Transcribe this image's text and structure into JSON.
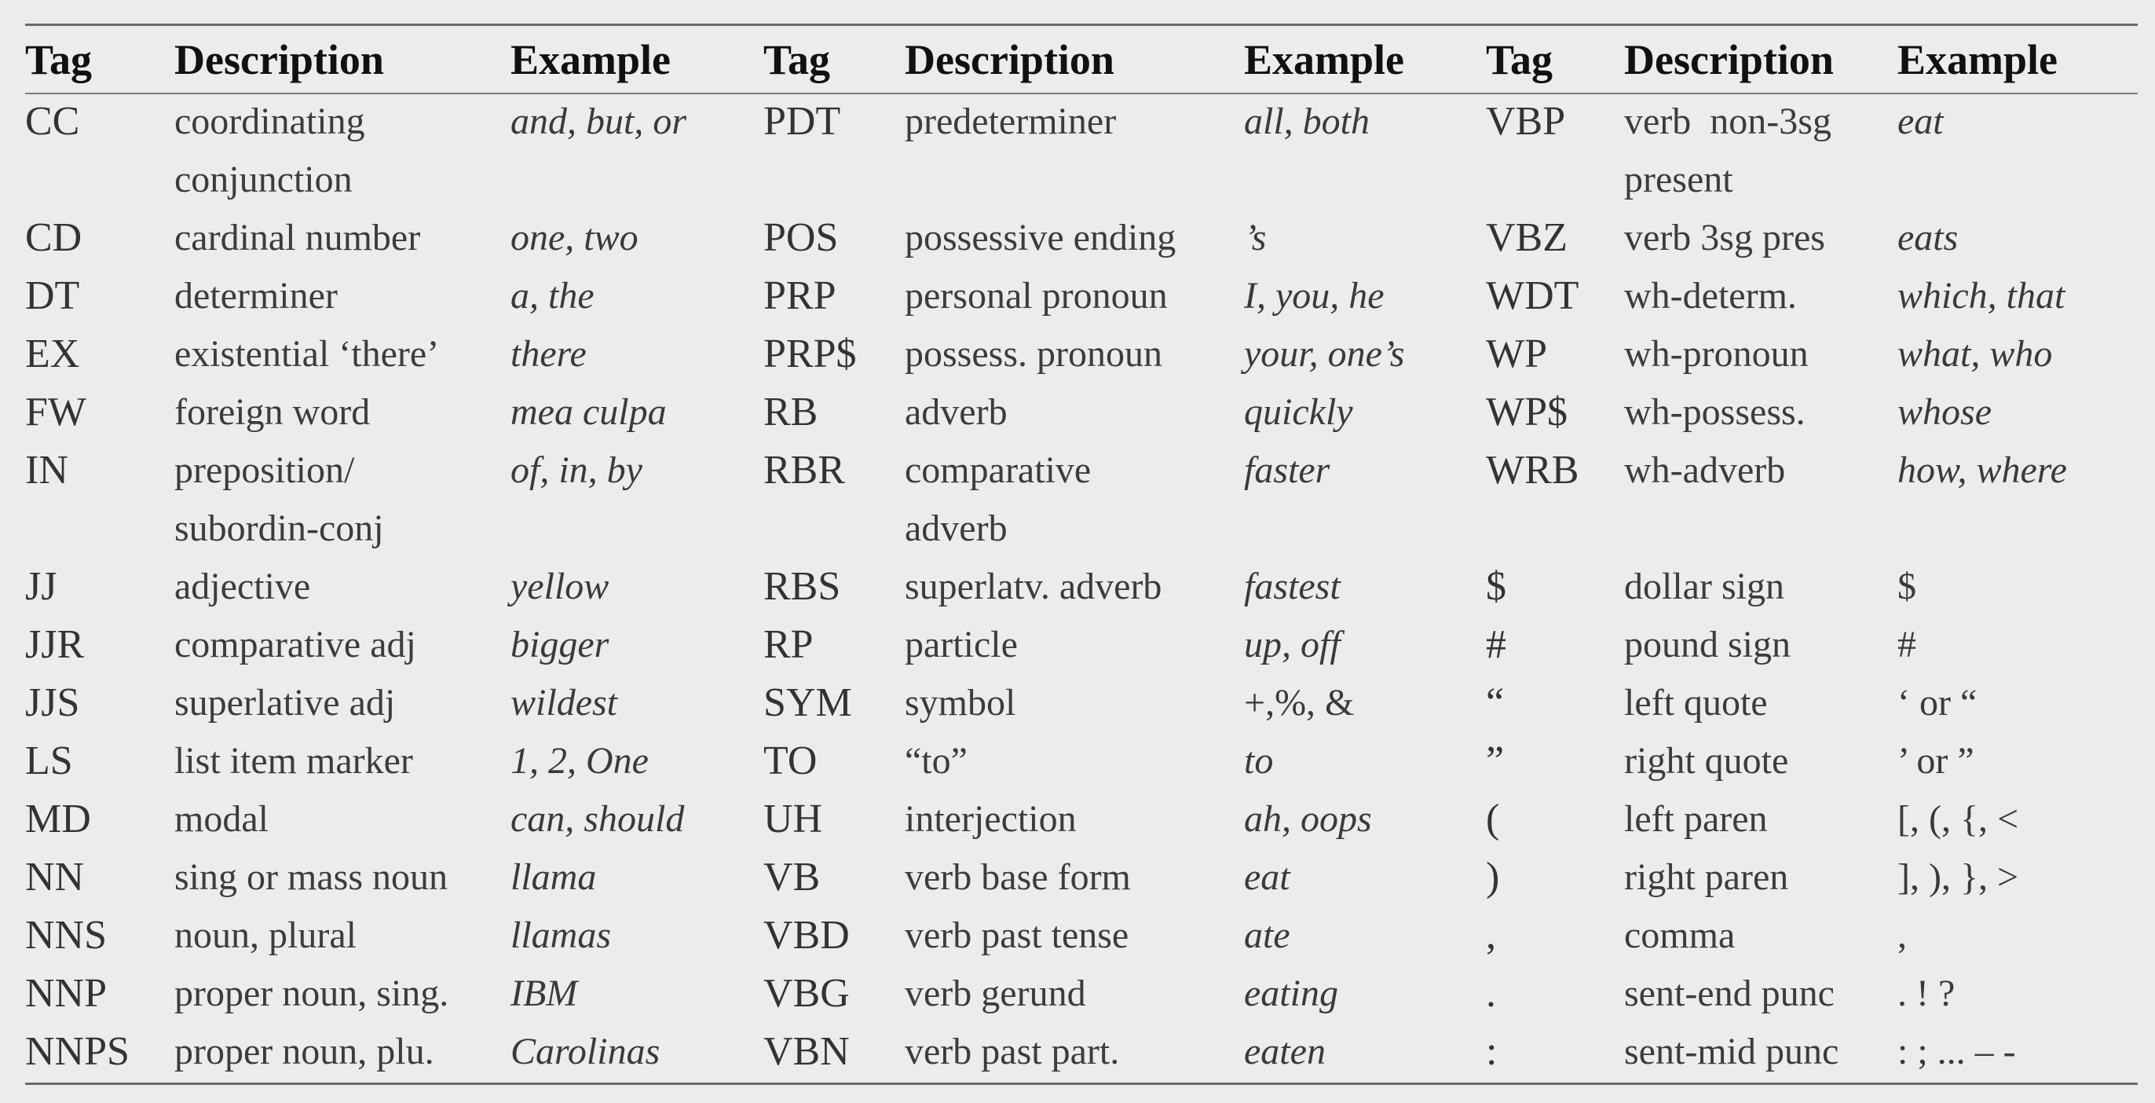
{
  "headers": [
    "Tag",
    "Description",
    "Example",
    "Tag",
    "Description",
    "Example",
    "Tag",
    "Description",
    "Example"
  ],
  "rows": [
    [
      {
        "tag": "CC",
        "desc": "coordinating conjunction",
        "ex": "and, but, or"
      },
      {
        "tag": "PDT",
        "desc": "predeterminer",
        "ex": "all, both"
      },
      {
        "tag": "VBP",
        "desc": "verb non-3sg present",
        "ex": "eat"
      }
    ],
    [
      {
        "tag": "CD",
        "desc": "cardinal number",
        "ex": "one, two"
      },
      {
        "tag": "POS",
        "desc": "possessive ending",
        "ex": "’s"
      },
      {
        "tag": "VBZ",
        "desc": "verb 3sg pres",
        "ex": "eats"
      }
    ],
    [
      {
        "tag": "DT",
        "desc": "determiner",
        "ex": "a, the"
      },
      {
        "tag": "PRP",
        "desc": "personal pronoun",
        "ex": "I, you, he"
      },
      {
        "tag": "WDT",
        "desc": "wh-determ.",
        "ex": "which, that"
      }
    ],
    [
      {
        "tag": "EX",
        "desc": "existential ‘there’",
        "ex": "there"
      },
      {
        "tag": "PRP$",
        "desc": "possess. pronoun",
        "ex": "your, one’s"
      },
      {
        "tag": "WP",
        "desc": "wh-pronoun",
        "ex": "what, who"
      }
    ],
    [
      {
        "tag": "FW",
        "desc": "foreign word",
        "ex": "mea culpa"
      },
      {
        "tag": "RB",
        "desc": "adverb",
        "ex": "quickly"
      },
      {
        "tag": "WP$",
        "desc": "wh-possess.",
        "ex": "whose"
      }
    ],
    [
      {
        "tag": "IN",
        "desc": "preposition/ subordin-conj",
        "ex": "of, in, by"
      },
      {
        "tag": "RBR",
        "desc": "comparative adverb",
        "ex": "faster"
      },
      {
        "tag": "WRB",
        "desc": "wh-adverb",
        "ex": "how, where"
      }
    ],
    [
      {
        "tag": "JJ",
        "desc": "adjective",
        "ex": "yellow"
      },
      {
        "tag": "RBS",
        "desc": "superlatv. adverb",
        "ex": "fastest"
      },
      {
        "tag": "$",
        "desc": "dollar sign",
        "ex": "$"
      }
    ],
    [
      {
        "tag": "JJR",
        "desc": "comparative adj",
        "ex": "bigger"
      },
      {
        "tag": "RP",
        "desc": "particle",
        "ex": "up, off"
      },
      {
        "tag": "#",
        "desc": "pound sign",
        "ex": "#"
      }
    ],
    [
      {
        "tag": "JJS",
        "desc": "superlative adj",
        "ex": "wildest"
      },
      {
        "tag": "SYM",
        "desc": "symbol",
        "ex": "+,%, &"
      },
      {
        "tag": "“",
        "desc": "left quote",
        "ex": "‘ or “"
      }
    ],
    [
      {
        "tag": "LS",
        "desc": "list item marker",
        "ex": "1, 2, One"
      },
      {
        "tag": "TO",
        "desc": "“to”",
        "ex": "to"
      },
      {
        "tag": "”",
        "desc": "right quote",
        "ex": "’ or ”"
      }
    ],
    [
      {
        "tag": "MD",
        "desc": "modal",
        "ex": "can, should"
      },
      {
        "tag": "UH",
        "desc": "interjection",
        "ex": "ah, oops"
      },
      {
        "tag": "(",
        "desc": "left paren",
        "ex": "[, (, {, <"
      }
    ],
    [
      {
        "tag": "NN",
        "desc": "sing or mass noun",
        "ex": "llama"
      },
      {
        "tag": "VB",
        "desc": "verb base form",
        "ex": "eat"
      },
      {
        "tag": ")",
        "desc": "right paren",
        "ex": "], ), }, >"
      }
    ],
    [
      {
        "tag": "NNS",
        "desc": "noun, plural",
        "ex": "llamas"
      },
      {
        "tag": "VBD",
        "desc": "verb past tense",
        "ex": "ate"
      },
      {
        "tag": ",",
        "desc": "comma",
        "ex": ","
      }
    ],
    [
      {
        "tag": "NNP",
        "desc": "proper noun, sing.",
        "ex": "IBM"
      },
      {
        "tag": "VBG",
        "desc": "verb gerund",
        "ex": "eating"
      },
      {
        "tag": ".",
        "desc": "sent-end punc",
        "ex": ". ! ?"
      }
    ],
    [
      {
        "tag": "NNPS",
        "desc": "proper noun, plu.",
        "ex": "Carolinas"
      },
      {
        "tag": "VBN",
        "desc": "verb past part.",
        "ex": "eaten"
      },
      {
        "tag": ":",
        "desc": "sent-mid punc",
        "ex": ": ; ... – -"
      }
    ]
  ]
}
